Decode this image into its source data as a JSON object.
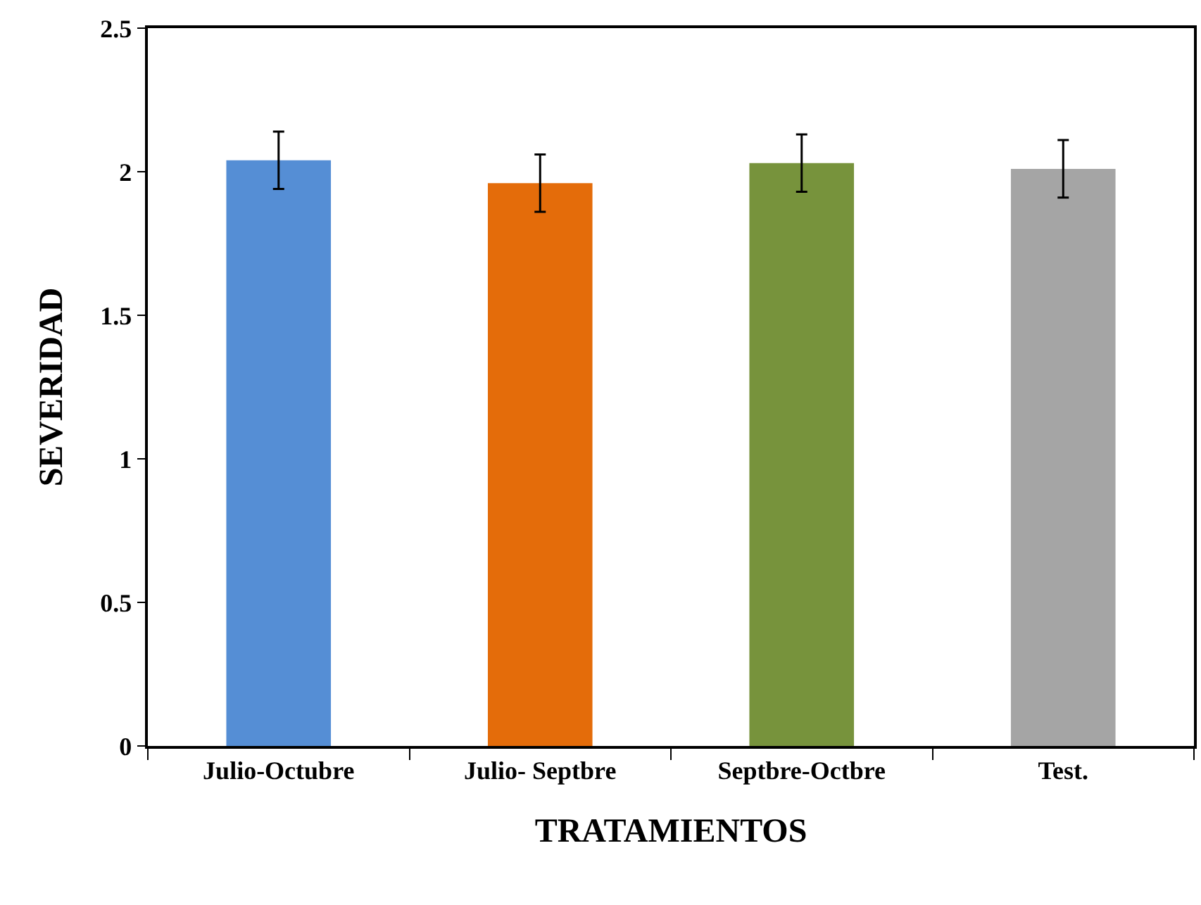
{
  "chart_data": {
    "type": "bar",
    "xlabel": "TRATAMIENTOS",
    "ylabel": "SEVERIDAD",
    "categories": [
      "Julio-Octubre",
      "Julio- Septbre",
      "Septbre-Octbre",
      "Test."
    ],
    "values": [
      2.04,
      1.96,
      2.03,
      2.01
    ],
    "errors": [
      0.1,
      0.1,
      0.1,
      0.1
    ],
    "colors": [
      "#558ed5",
      "#e46c0a",
      "#77933c",
      "#a5a5a5"
    ],
    "ylim": [
      0,
      2.5
    ],
    "yticks": [
      0,
      0.5,
      1,
      1.5,
      2,
      2.5
    ]
  }
}
